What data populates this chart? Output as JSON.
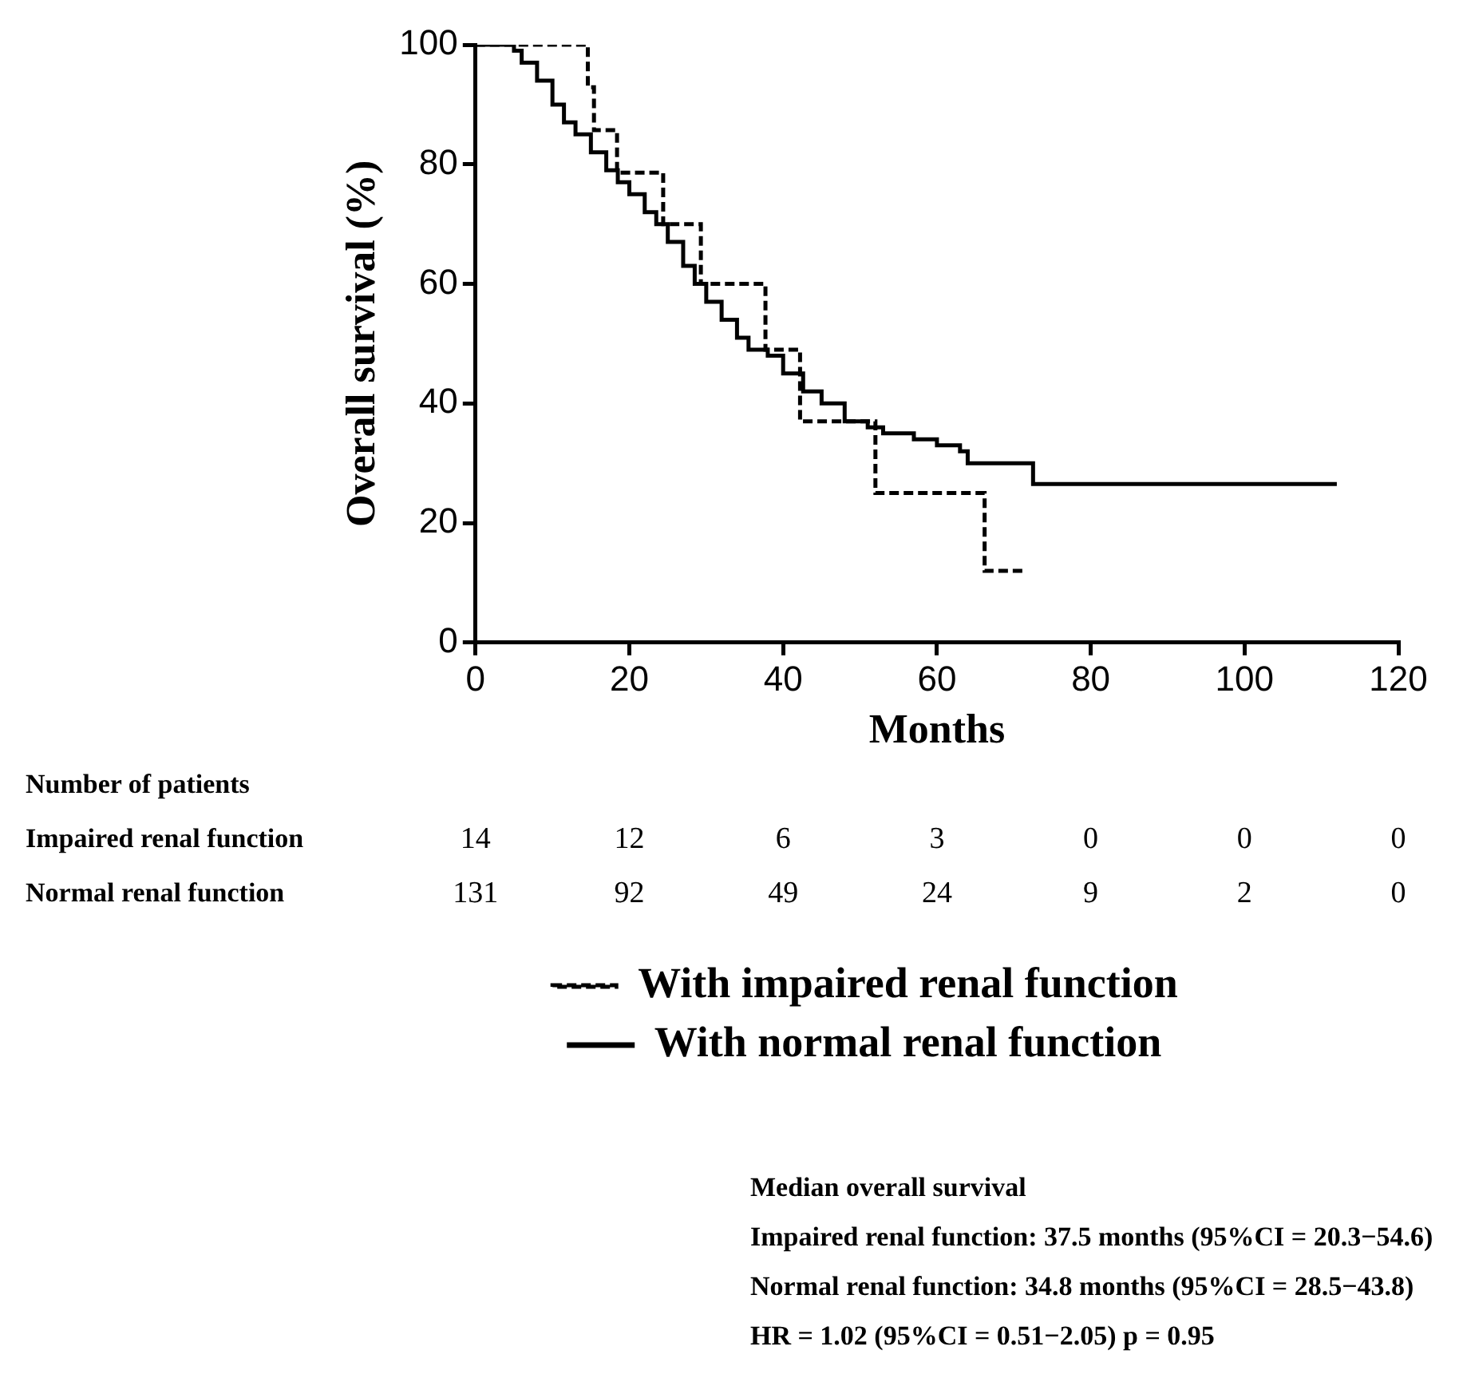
{
  "chart_data": {
    "type": "step",
    "xlabel": "Months",
    "ylabel": "Overall survival (%)",
    "xlim": [
      0,
      120
    ],
    "xticks": [
      0,
      20,
      40,
      60,
      80,
      100,
      120
    ],
    "ylim": [
      0,
      100
    ],
    "yticks": [
      0,
      20,
      40,
      60,
      80,
      100
    ],
    "grid": false,
    "legend": "bottom",
    "marker": "none",
    "series": [
      {
        "name": "With impaired renal function",
        "color": "#000000",
        "line_style": "dashed",
        "x": [
          0,
          14.6,
          15.4,
          18.4,
          24.4,
          29.3,
          37.7,
          42.2,
          52,
          66.2,
          71.5
        ],
        "values": [
          100,
          92.9,
          85.7,
          78.6,
          70,
          60,
          49,
          37,
          25,
          12,
          12
        ]
      },
      {
        "name": "With normal renal function",
        "color": "#000000",
        "line_style": "solid",
        "x": [
          0,
          5,
          6,
          8,
          10,
          11.5,
          13,
          15,
          17,
          18.5,
          20,
          22,
          23.5,
          25,
          27,
          28.5,
          30,
          32,
          34,
          35.5,
          38,
          40,
          42.6,
          45,
          48,
          51,
          53,
          57,
          60,
          63,
          64,
          72.5,
          112
        ],
        "values": [
          100,
          99,
          97,
          94,
          90,
          87,
          85,
          82,
          79,
          77,
          75,
          72,
          70,
          67,
          63,
          60,
          57,
          54,
          51,
          49,
          48,
          45,
          42,
          40,
          37,
          36,
          35,
          34,
          33,
          32,
          30,
          26.5,
          26.5
        ]
      }
    ],
    "annotations": [
      "Number of patients",
      "Impaired renal function",
      "14",
      "12",
      "6",
      "3",
      "0",
      "0",
      "0",
      "Normal renal function",
      "131",
      "92",
      "49",
      "24",
      "9",
      "2",
      "0",
      "Median overall survival",
      "Impaired renal function: 37.5 months (95%CI = 20.3−54.6)",
      "Normal renal function: 34.8 months (95%CI = 28.5−43.8)",
      "HR = 1.02 (95%CI = 0.51−2.05)  p = 0.95"
    ]
  }
}
